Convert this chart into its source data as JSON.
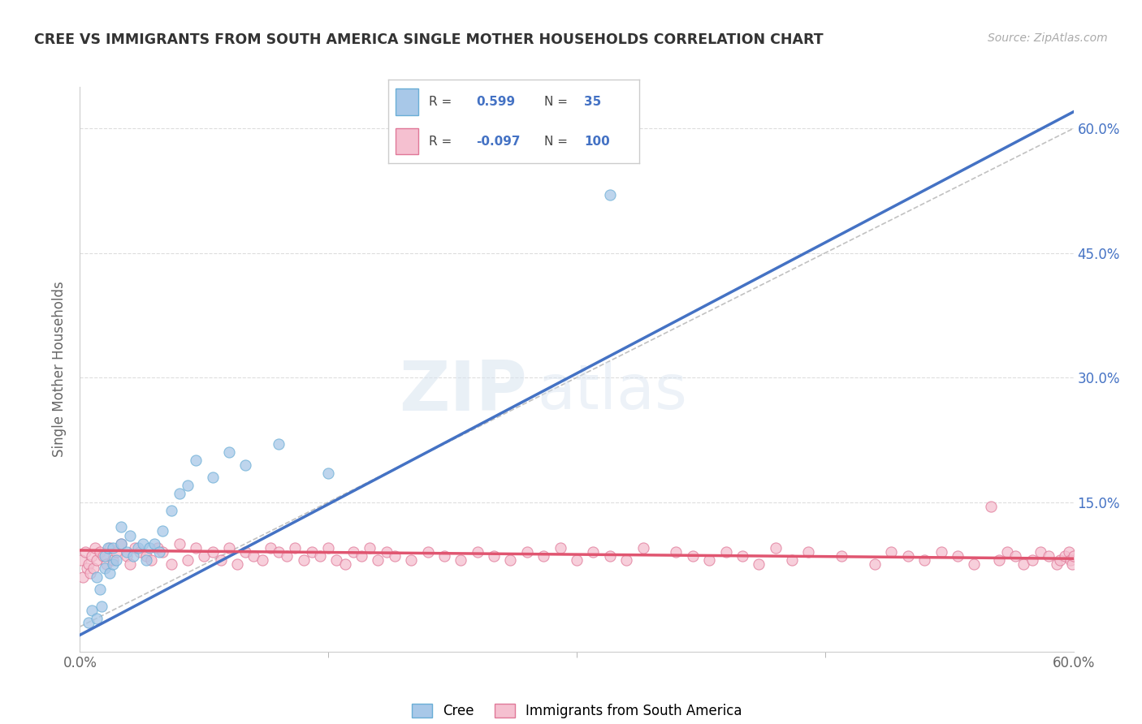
{
  "title": "CREE VS IMMIGRANTS FROM SOUTH AMERICA SINGLE MOTHER HOUSEHOLDS CORRELATION CHART",
  "source": "Source: ZipAtlas.com",
  "ylabel": "Single Mother Households",
  "legend_label1": "Cree",
  "legend_label2": "Immigrants from South America",
  "R1": 0.599,
  "N1": 35,
  "R2": -0.097,
  "N2": 100,
  "color_cree_fill": "#a8c8e8",
  "color_cree_edge": "#6aaed6",
  "color_sa_fill": "#f5c0d0",
  "color_sa_edge": "#e07898",
  "color_line_cree": "#4472c4",
  "color_line_sa": "#e05570",
  "color_dashed": "#bbbbbb",
  "xlim": [
    0.0,
    0.6
  ],
  "ylim": [
    -0.03,
    0.65
  ],
  "cree_x": [
    0.005,
    0.007,
    0.01,
    0.01,
    0.012,
    0.013,
    0.015,
    0.015,
    0.017,
    0.018,
    0.02,
    0.02,
    0.022,
    0.025,
    0.025,
    0.028,
    0.03,
    0.032,
    0.035,
    0.038,
    0.04,
    0.042,
    0.045,
    0.048,
    0.05,
    0.055,
    0.06,
    0.065,
    0.07,
    0.08,
    0.09,
    0.1,
    0.12,
    0.15,
    0.32
  ],
  "cree_y": [
    0.005,
    0.02,
    0.01,
    0.06,
    0.045,
    0.025,
    0.07,
    0.085,
    0.095,
    0.065,
    0.075,
    0.095,
    0.08,
    0.1,
    0.12,
    0.09,
    0.11,
    0.085,
    0.095,
    0.1,
    0.08,
    0.095,
    0.1,
    0.09,
    0.115,
    0.14,
    0.16,
    0.17,
    0.2,
    0.18,
    0.21,
    0.195,
    0.22,
    0.185,
    0.52
  ],
  "sa_x": [
    0.001,
    0.002,
    0.003,
    0.004,
    0.005,
    0.006,
    0.007,
    0.008,
    0.009,
    0.01,
    0.012,
    0.014,
    0.016,
    0.018,
    0.02,
    0.022,
    0.025,
    0.028,
    0.03,
    0.033,
    0.036,
    0.04,
    0.043,
    0.047,
    0.05,
    0.055,
    0.06,
    0.065,
    0.07,
    0.075,
    0.08,
    0.085,
    0.09,
    0.095,
    0.1,
    0.105,
    0.11,
    0.115,
    0.12,
    0.125,
    0.13,
    0.135,
    0.14,
    0.145,
    0.15,
    0.155,
    0.16,
    0.165,
    0.17,
    0.175,
    0.18,
    0.185,
    0.19,
    0.2,
    0.21,
    0.22,
    0.23,
    0.24,
    0.25,
    0.26,
    0.27,
    0.28,
    0.29,
    0.3,
    0.31,
    0.32,
    0.33,
    0.34,
    0.36,
    0.37,
    0.38,
    0.39,
    0.4,
    0.41,
    0.42,
    0.43,
    0.44,
    0.46,
    0.48,
    0.49,
    0.5,
    0.51,
    0.52,
    0.53,
    0.54,
    0.55,
    0.555,
    0.56,
    0.565,
    0.57,
    0.575,
    0.58,
    0.585,
    0.59,
    0.592,
    0.595,
    0.597,
    0.598,
    0.599,
    0.6
  ],
  "sa_y": [
    0.08,
    0.06,
    0.09,
    0.07,
    0.075,
    0.065,
    0.085,
    0.07,
    0.095,
    0.08,
    0.09,
    0.085,
    0.075,
    0.095,
    0.08,
    0.09,
    0.1,
    0.085,
    0.075,
    0.095,
    0.09,
    0.085,
    0.08,
    0.095,
    0.09,
    0.075,
    0.1,
    0.08,
    0.095,
    0.085,
    0.09,
    0.08,
    0.095,
    0.075,
    0.09,
    0.085,
    0.08,
    0.095,
    0.09,
    0.085,
    0.095,
    0.08,
    0.09,
    0.085,
    0.095,
    0.08,
    0.075,
    0.09,
    0.085,
    0.095,
    0.08,
    0.09,
    0.085,
    0.08,
    0.09,
    0.085,
    0.08,
    0.09,
    0.085,
    0.08,
    0.09,
    0.085,
    0.095,
    0.08,
    0.09,
    0.085,
    0.08,
    0.095,
    0.09,
    0.085,
    0.08,
    0.09,
    0.085,
    0.075,
    0.095,
    0.08,
    0.09,
    0.085,
    0.075,
    0.09,
    0.085,
    0.08,
    0.09,
    0.085,
    0.075,
    0.145,
    0.08,
    0.09,
    0.085,
    0.075,
    0.08,
    0.09,
    0.085,
    0.075,
    0.08,
    0.085,
    0.09,
    0.08,
    0.075,
    0.085
  ],
  "cree_line_x0": 0.0,
  "cree_line_y0": -0.01,
  "cree_line_x1": 0.6,
  "cree_line_y1": 0.62,
  "sa_line_x0": 0.0,
  "sa_line_y0": 0.092,
  "sa_line_x1": 0.6,
  "sa_line_y1": 0.082
}
